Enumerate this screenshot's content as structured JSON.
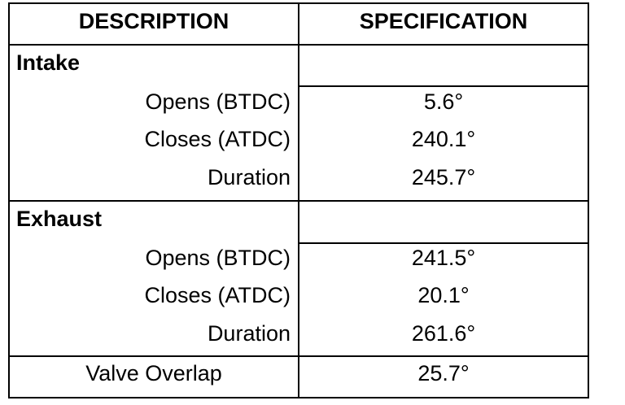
{
  "table": {
    "header": [
      "DESCRIPTION",
      "SPECIFICATION"
    ],
    "sections": [
      {
        "title": "Intake",
        "rows": [
          [
            "Opens (BTDC)",
            "5.6°"
          ],
          [
            "Closes (ATDC)",
            "240.1°"
          ],
          [
            "Duration",
            "245.7°"
          ]
        ]
      },
      {
        "title": "Exhaust",
        "rows": [
          [
            "Opens (BTDC)",
            "241.5°"
          ],
          [
            "Closes (ATDC)",
            "20.1°"
          ],
          [
            "Duration",
            "261.6°"
          ]
        ]
      }
    ],
    "footer": [
      "Valve Overlap",
      "25.7°"
    ]
  }
}
